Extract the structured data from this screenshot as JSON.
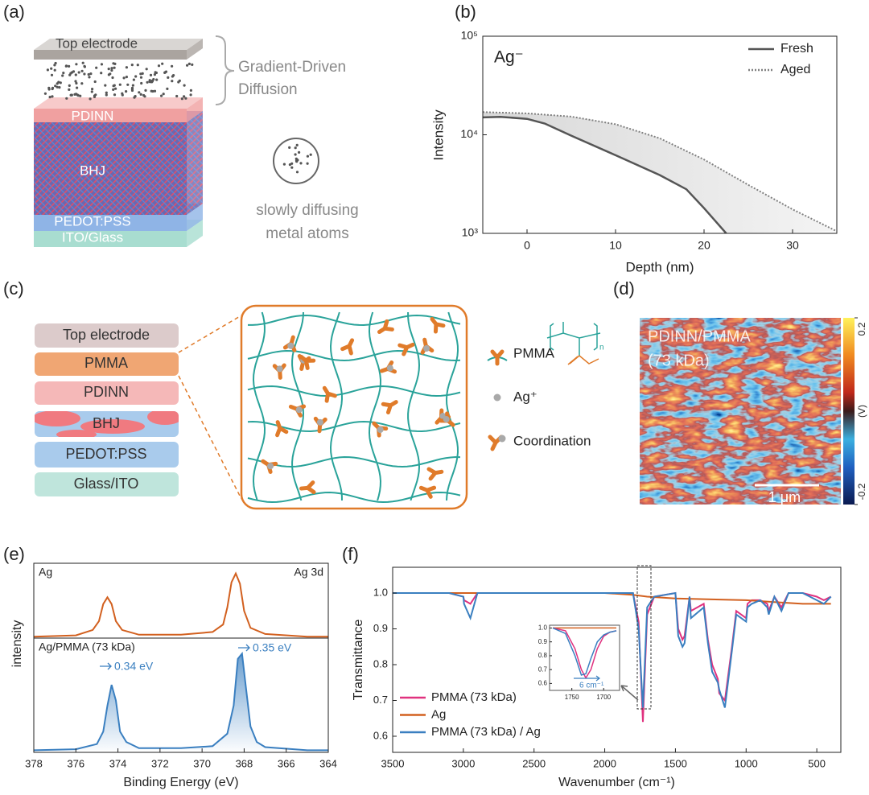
{
  "panel_labels": [
    "(a)",
    "(b)",
    "(c)",
    "(d)",
    "(e)",
    "(f)"
  ],
  "diagram_a": {
    "layers": [
      "Top electrode",
      "PDINN",
      "BHJ",
      "PEDOT:PSS",
      "ITO/Glass"
    ],
    "bracket_label": [
      "Gradient-Driven",
      "Diffusion"
    ],
    "atoms_label": [
      "slowly diffusing",
      "metal atoms"
    ]
  },
  "diagram_c": {
    "layers": [
      "Top electrode",
      "PMMA",
      "PDINN",
      "BHJ",
      "PEDOT:PSS",
      "Glass/ITO"
    ],
    "legend": [
      "PMMA",
      "Ag⁺",
      "Coordination"
    ],
    "repeat_unit": "n"
  },
  "image_d": {
    "label": [
      "PDINN/PMMA",
      "(73 kDa)"
    ],
    "scale_bar": "1 μm",
    "colorbar": {
      "lim": [
        -0.2,
        0.2
      ],
      "ticks": [
        0.2,
        -0.2
      ],
      "unit": "(V)"
    }
  },
  "chart_data": [
    {
      "type": "line",
      "annotation": "Ag⁻",
      "xlabel": "Depth (nm)",
      "ylabel": "Intensity",
      "xlim": [
        -5,
        35
      ],
      "xticks": [
        0,
        10,
        20,
        30
      ],
      "ylim": [
        1000,
        100000
      ],
      "yticks": [
        {
          "value": 1000,
          "label": "10³"
        },
        {
          "value": 10000,
          "label": "10⁴"
        },
        {
          "value": 100000,
          "label": "10⁵"
        }
      ],
      "log_y": true,
      "legend": "upper right",
      "fill_between": true,
      "series": [
        {
          "name": "Fresh",
          "color": "#555555",
          "style": "solid",
          "x": [
            -5,
            -3,
            0,
            2,
            5,
            10,
            15,
            18,
            20,
            22.5
          ],
          "values": [
            15000,
            15200,
            14500,
            13000,
            9800,
            6200,
            3900,
            2800,
            1800,
            1000
          ]
        },
        {
          "name": "Aged",
          "color": "#808080",
          "style": "dotted",
          "x": [
            -5,
            0,
            5,
            10,
            15,
            20,
            25,
            30,
            35
          ],
          "values": [
            17000,
            16500,
            15300,
            12800,
            9200,
            5600,
            3100,
            1750,
            1050
          ]
        }
      ]
    },
    {
      "type": "line",
      "xlabel": "Binding Energy (eV)",
      "ylabel": "intensity",
      "xlim": [
        378,
        364
      ],
      "xticks": [
        378,
        376,
        374,
        372,
        370,
        368,
        366,
        364
      ],
      "ylim": [
        0,
        1.1
      ],
      "element": "Ag 3d",
      "shifts": [
        "0.34 eV",
        "0.35 eV"
      ],
      "series": [
        {
          "name": "Ag",
          "color": "#d2601f",
          "filled": false,
          "x": [
            378,
            376,
            375.2,
            374.9,
            374.7,
            374.5,
            374.3,
            374.1,
            373.8,
            373,
            371,
            369.5,
            369,
            368.8,
            368.6,
            368.4,
            368.2,
            368,
            367.7,
            367,
            365,
            364
          ],
          "values": [
            0.02,
            0.04,
            0.12,
            0.25,
            0.5,
            0.6,
            0.5,
            0.25,
            0.12,
            0.05,
            0.05,
            0.09,
            0.2,
            0.45,
            0.82,
            0.95,
            0.8,
            0.4,
            0.15,
            0.06,
            0.02,
            0.02
          ]
        },
        {
          "name": "Ag/PMMA (73 kDa)",
          "color": "#3a7fc0",
          "filled": true,
          "x": [
            378,
            376,
            375,
            374.7,
            374.5,
            374.3,
            374.1,
            373.9,
            373.6,
            373,
            371,
            369.5,
            368.8,
            368.5,
            368.3,
            368.1,
            367.9,
            367.7,
            367.4,
            367,
            365,
            364
          ],
          "values": [
            0.02,
            0.03,
            0.08,
            0.2,
            0.45,
            0.65,
            0.5,
            0.2,
            0.1,
            0.04,
            0.04,
            0.06,
            0.18,
            0.45,
            0.9,
            0.95,
            0.6,
            0.25,
            0.1,
            0.05,
            0.02,
            0.02
          ]
        }
      ]
    },
    {
      "type": "line",
      "xlabel": "Wavenumber (cm⁻¹)",
      "ylabel": "Transmittance",
      "xlim": [
        3500,
        330
      ],
      "xticks": [
        3500,
        3000,
        2500,
        2000,
        1500,
        1000,
        500
      ],
      "ylim": [
        0.555,
        1.072
      ],
      "yticks": [
        0.6,
        0.7,
        0.8,
        0.9,
        {
          "value": 1,
          "label": "1.0"
        }
      ],
      "legend": "lower left",
      "series": [
        {
          "name": "PMMA (73 kDa)",
          "color": "#e0327f",
          "x": [
            3500,
            3100,
            3000,
            2995,
            2950,
            2900,
            2500,
            2000,
            1800,
            1760,
            1730,
            1700,
            1650,
            1500,
            1480,
            1450,
            1435,
            1400,
            1390,
            1300,
            1270,
            1240,
            1200,
            1190,
            1150,
            1100,
            1070,
            1000,
            990,
            960,
            900,
            850,
            840,
            800,
            750,
            700,
            600,
            500,
            450,
            400
          ],
          "values": [
            1,
            1,
            0.99,
            0.98,
            0.97,
            1,
            1,
            1,
            1,
            0.92,
            0.64,
            0.94,
            0.99,
            1,
            0.9,
            0.87,
            0.88,
            0.99,
            0.95,
            0.97,
            0.87,
            0.8,
            0.76,
            0.72,
            0.7,
            0.85,
            0.95,
            0.93,
            0.97,
            0.98,
            0.98,
            0.97,
            0.95,
            0.99,
            0.96,
            1,
            1,
            0.99,
            0.98,
            0.99
          ]
        },
        {
          "name": "Ag",
          "color": "#d2601f",
          "x": [
            3500,
            3000,
            2000,
            1800,
            1700,
            1500,
            1000,
            800,
            600,
            400
          ],
          "values": [
            1,
            1,
            1,
            0.995,
            0.99,
            0.985,
            0.98,
            0.975,
            0.97,
            0.97
          ]
        },
        {
          "name": "PMMA (73 kDa) / Ag",
          "color": "#3a7fc0",
          "x": [
            3500,
            3100,
            3000,
            2995,
            2950,
            2900,
            2500,
            2000,
            1800,
            1760,
            1730,
            1700,
            1650,
            1500,
            1480,
            1450,
            1435,
            1400,
            1390,
            1300,
            1270,
            1240,
            1200,
            1190,
            1150,
            1100,
            1070,
            1000,
            990,
            960,
            900,
            850,
            840,
            800,
            750,
            700,
            600,
            500,
            450,
            400
          ],
          "values": [
            1,
            1,
            0.99,
            0.97,
            0.93,
            1,
            1,
            1,
            1,
            0.9,
            0.68,
            0.96,
            0.99,
            1,
            0.88,
            0.85,
            0.86,
            0.99,
            0.93,
            0.96,
            0.86,
            0.78,
            0.75,
            0.73,
            0.68,
            0.84,
            0.94,
            0.92,
            0.96,
            0.97,
            0.98,
            0.96,
            0.94,
            0.99,
            0.95,
            1,
            1,
            0.98,
            0.97,
            0.99
          ]
        }
      ],
      "inset": {
        "xlim": [
          1785,
          1675
        ],
        "xticks": [
          1750,
          1700
        ],
        "ylim": [
          0.55,
          1.02
        ],
        "yticks": [
          0.6,
          0.7,
          0.8,
          0.9,
          {
            "value": 1,
            "label": "1.0"
          }
        ],
        "annotation": "6 cm⁻¹",
        "series": [
          {
            "color": "#d2601f",
            "x": [
              1780,
              1730,
              1680
            ],
            "values": [
              1,
              1,
              1
            ]
          },
          {
            "color": "#e0327f",
            "x": [
              1780,
              1760,
              1745,
              1735,
              1728,
              1720,
              1710,
              1700,
              1690,
              1680
            ],
            "values": [
              1,
              0.98,
              0.85,
              0.7,
              0.64,
              0.7,
              0.85,
              0.94,
              0.97,
              0.98
            ]
          },
          {
            "color": "#3a7fc0",
            "x": [
              1780,
              1760,
              1745,
              1735,
              1728,
              1720,
              1710,
              1700,
              1690,
              1680
            ],
            "values": [
              1,
              0.96,
              0.8,
              0.66,
              0.67,
              0.78,
              0.9,
              0.95,
              0.97,
              0.98
            ]
          }
        ]
      }
    }
  ]
}
